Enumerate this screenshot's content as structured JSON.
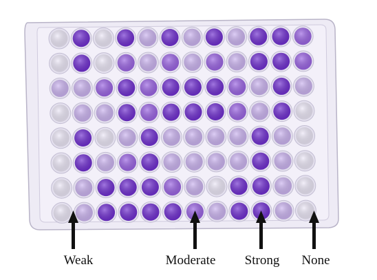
{
  "figure": {
    "labels": [
      {
        "id": "weak",
        "text": "Weak"
      },
      {
        "id": "moderate",
        "text": "Moderate"
      },
      {
        "id": "strong",
        "text": "Strong"
      },
      {
        "id": "none",
        "text": "None"
      }
    ]
  },
  "plate": {
    "rows": 8,
    "cols": 12,
    "intensity": [
      [
        0,
        3,
        0,
        3,
        1,
        3,
        1,
        3,
        1,
        3,
        3,
        2
      ],
      [
        0,
        3,
        0,
        2,
        1,
        2,
        1,
        2,
        1,
        3,
        3,
        2
      ],
      [
        1,
        1,
        2,
        3,
        2,
        3,
        3,
        3,
        2,
        1,
        3,
        1
      ],
      [
        0,
        1,
        1,
        3,
        2,
        3,
        3,
        3,
        2,
        1,
        3,
        0
      ],
      [
        0,
        3,
        0,
        1,
        3,
        1,
        1,
        1,
        1,
        3,
        1,
        0
      ],
      [
        0,
        3,
        1,
        2,
        3,
        1,
        1,
        1,
        1,
        3,
        1,
        0
      ],
      [
        0,
        1,
        3,
        3,
        3,
        2,
        1,
        0,
        3,
        3,
        1,
        0
      ],
      [
        0,
        1,
        3,
        3,
        3,
        3,
        2,
        1,
        3,
        3,
        1,
        0
      ]
    ],
    "colors": {
      "none": "#ece7f7",
      "weak": "#cbb3f0",
      "moderate": "#9a63e3",
      "strong": "#6f2dd0",
      "plate": "#f1eef8"
    }
  }
}
